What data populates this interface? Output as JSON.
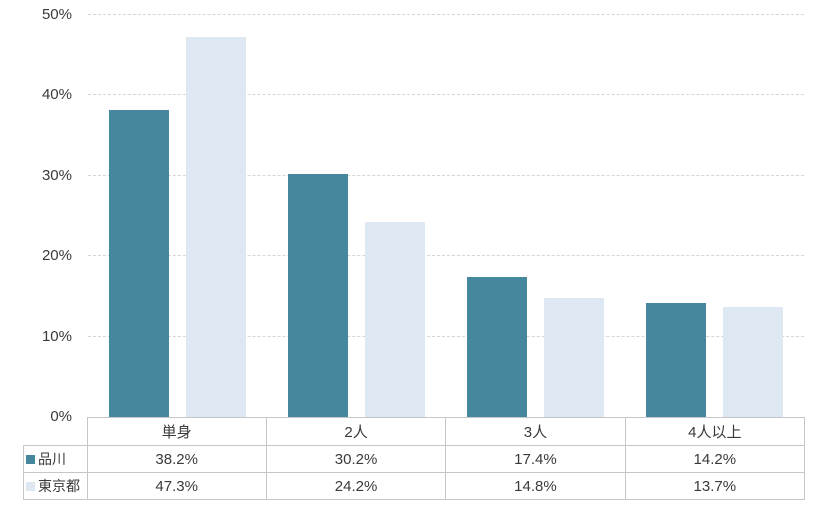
{
  "chart_data": {
    "type": "bar",
    "title": "",
    "xlabel": "",
    "ylabel": "",
    "categories": [
      "単身",
      "2人",
      "3人",
      "4人以上"
    ],
    "series": [
      {
        "name": "品川",
        "color": "#45889E",
        "values": [
          38.2,
          30.2,
          17.4,
          14.2
        ],
        "value_labels": [
          "38.2%",
          "30.2%",
          "17.4%",
          "14.2%"
        ]
      },
      {
        "name": "東京都",
        "color": "#DEE8F3",
        "values": [
          47.3,
          24.2,
          14.8,
          13.7
        ],
        "value_labels": [
          "47.3%",
          "24.2%",
          "14.8%",
          "13.7%"
        ]
      }
    ],
    "ylim": [
      0,
      50
    ],
    "yticks": [
      0,
      10,
      20,
      30,
      40,
      50
    ],
    "ytick_labels": [
      "0%",
      "10%",
      "20%",
      "30%",
      "40%",
      "50%"
    ],
    "grid": "horizontal, dashed, light-gray",
    "legend_position": "data-table-left-column",
    "colors": {
      "gridline": "#d5d5d5",
      "table_border": "#c6c6c6",
      "text": "#3a3a3a",
      "background": "#ffffff"
    }
  }
}
